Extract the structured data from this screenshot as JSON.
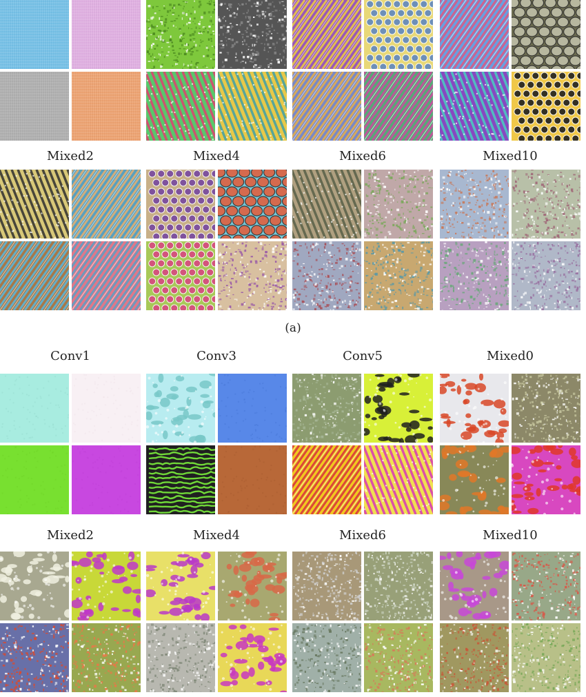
{
  "panel_a": {
    "letter": "(a)",
    "rows": [
      {
        "labels": [
          "",
          "",
          "",
          ""
        ]
      },
      {
        "labels": [
          "Mixed2",
          "Mixed4",
          "Mixed6",
          "Mixed10"
        ]
      }
    ],
    "groups": [
      {
        "tiles": [
          {
            "bg": "#7cc4e8",
            "fg": "#4a9ccc",
            "style": "fine"
          },
          {
            "bg": "#e4b4e4",
            "fg": "#b488c0",
            "style": "fine"
          },
          {
            "bg": "#b4b4b4",
            "fg": "#888888",
            "style": "fine"
          },
          {
            "bg": "#f0a878",
            "fg": "#c47848",
            "style": "fine"
          }
        ]
      },
      {
        "tiles": [
          {
            "bg": "#7ec83c",
            "fg": "#4c8a20",
            "style": "speckle"
          },
          {
            "bg": "#555555",
            "fg": "#8a8a8a",
            "style": "speckle"
          },
          {
            "bg": "#58c86c",
            "fg": "#e04070",
            "style": "stripes"
          },
          {
            "bg": "#e8c848",
            "fg": "#40a0a8",
            "style": "stripes"
          }
        ]
      },
      {
        "tiles": [
          {
            "bg": "#9858b8",
            "fg": "#f0d040",
            "style": "diag"
          },
          {
            "bg": "#e8d878",
            "fg": "#6088c0",
            "style": "dots"
          },
          {
            "bg": "#7888c8",
            "fg": "#e8b048",
            "style": "diag"
          },
          {
            "bg": "#58a878",
            "fg": "#d048a0",
            "style": "diag"
          }
        ]
      },
      {
        "tiles": [
          {
            "bg": "#68a0e0",
            "fg": "#e05880",
            "style": "diag"
          },
          {
            "bg": "#6c6c50",
            "fg": "#c0c0a8",
            "style": "scales"
          },
          {
            "bg": "#8848c0",
            "fg": "#48d0c0",
            "style": "stripes"
          },
          {
            "bg": "#f0c848",
            "fg": "#202020",
            "style": "dots"
          }
        ]
      },
      {
        "tiles": [
          {
            "bg": "#d8c878",
            "fg": "#303030",
            "style": "stripes"
          },
          {
            "bg": "#58a0c0",
            "fg": "#e8b070",
            "style": "diag"
          },
          {
            "bg": "#a87848",
            "fg": "#58b8e0",
            "style": "diag"
          },
          {
            "bg": "#e07888",
            "fg": "#58a0c8",
            "style": "diag"
          }
        ]
      },
      {
        "tiles": [
          {
            "bg": "#c8b088",
            "fg": "#7848a0",
            "style": "dots"
          },
          {
            "bg": "#78c8d8",
            "fg": "#e06040",
            "style": "scales"
          },
          {
            "bg": "#a8c858",
            "fg": "#d84880",
            "style": "dots"
          },
          {
            "bg": "#d8c0a0",
            "fg": "#9858a8",
            "style": "speckle"
          }
        ]
      },
      {
        "tiles": [
          {
            "bg": "#b0a080",
            "fg": "#586048",
            "style": "stripes"
          },
          {
            "bg": "#c0a8a8",
            "fg": "#78a858",
            "style": "speckle"
          },
          {
            "bg": "#a0a8c0",
            "fg": "#a85058",
            "style": "speckle"
          },
          {
            "bg": "#c8a870",
            "fg": "#5898a8",
            "style": "speckle"
          }
        ]
      },
      {
        "tiles": [
          {
            "bg": "#a8b8d0",
            "fg": "#c87858",
            "style": "speckle"
          },
          {
            "bg": "#b8c0a8",
            "fg": "#a06878",
            "style": "speckle"
          },
          {
            "bg": "#b8a0c0",
            "fg": "#68a878",
            "style": "speckle"
          },
          {
            "bg": "#b0b8c8",
            "fg": "#9870a0",
            "style": "speckle"
          }
        ]
      }
    ]
  },
  "panel_b": {
    "rows": [
      {
        "labels": [
          "Conv1",
          "Conv3",
          "Conv5",
          "Mixed0"
        ]
      },
      {
        "labels": [
          "Mixed2",
          "Mixed4",
          "Mixed6",
          "Mixed10"
        ]
      }
    ],
    "groups": [
      {
        "tiles": [
          {
            "bg": "#a8ece0",
            "fg": "#98dcd0",
            "style": "flat"
          },
          {
            "bg": "#f8f0f4",
            "fg": "#efe4ea",
            "style": "flat"
          },
          {
            "bg": "#78e030",
            "fg": "#70d428",
            "style": "flat"
          },
          {
            "bg": "#c848e0",
            "fg": "#c040d8",
            "style": "flat"
          }
        ]
      },
      {
        "tiles": [
          {
            "bg": "#b8ecf0",
            "fg": "#78c8c8",
            "style": "blobs"
          },
          {
            "bg": "#5888e8",
            "fg": "#4878d8",
            "style": "flat"
          },
          {
            "bg": "#202020",
            "fg": "#70d838",
            "style": "worms"
          },
          {
            "bg": "#b86838",
            "fg": "#a85c30",
            "style": "flat"
          }
        ]
      },
      {
        "tiles": [
          {
            "bg": "#8c9c70",
            "fg": "#a8b898",
            "style": "speckle"
          },
          {
            "bg": "#d8f038",
            "fg": "#202020",
            "style": "blobs"
          },
          {
            "bg": "#f0c820",
            "fg": "#d83040",
            "style": "diag"
          },
          {
            "bg": "#f0e050",
            "fg": "#d838b8",
            "style": "stripes"
          }
        ]
      },
      {
        "tiles": [
          {
            "bg": "#e8e8ec",
            "fg": "#d84828",
            "style": "blobs"
          },
          {
            "bg": "#8c8868",
            "fg": "#c8c8a0",
            "style": "speckle"
          },
          {
            "bg": "#888858",
            "fg": "#e07828",
            "style": "blobs"
          },
          {
            "bg": "#d848c0",
            "fg": "#e03828",
            "style": "blobs"
          }
        ]
      },
      {
        "tiles": [
          {
            "bg": "#a8a890",
            "fg": "#f0f0e0",
            "style": "blobs"
          },
          {
            "bg": "#c8d838",
            "fg": "#c038c8",
            "style": "blobs"
          },
          {
            "bg": "#6870a8",
            "fg": "#e04828",
            "style": "speckle"
          },
          {
            "bg": "#98a850",
            "fg": "#e87848",
            "style": "speckle"
          }
        ]
      },
      {
        "tiles": [
          {
            "bg": "#e8e068",
            "fg": "#b838c8",
            "style": "blobs"
          },
          {
            "bg": "#a8a870",
            "fg": "#d86848",
            "style": "blobs"
          },
          {
            "bg": "#b8b8b0",
            "fg": "#808878",
            "style": "speckle"
          },
          {
            "bg": "#e8d858",
            "fg": "#c838c0",
            "style": "blobs"
          }
        ]
      },
      {
        "tiles": [
          {
            "bg": "#a89878",
            "fg": "#d0d0d0",
            "style": "speckle"
          },
          {
            "bg": "#98a078",
            "fg": "#d0d8c8",
            "style": "speckle"
          },
          {
            "bg": "#a0b0a8",
            "fg": "#687860",
            "style": "speckle"
          },
          {
            "bg": "#a8b860",
            "fg": "#d87858",
            "style": "speckle"
          }
        ]
      },
      {
        "tiles": [
          {
            "bg": "#a89888",
            "fg": "#c848d8",
            "style": "blobs"
          },
          {
            "bg": "#98a888",
            "fg": "#d85848",
            "style": "speckle"
          },
          {
            "bg": "#a09860",
            "fg": "#c85838",
            "style": "speckle"
          },
          {
            "bg": "#b8c088",
            "fg": "#78a858",
            "style": "speckle"
          }
        ]
      }
    ]
  }
}
